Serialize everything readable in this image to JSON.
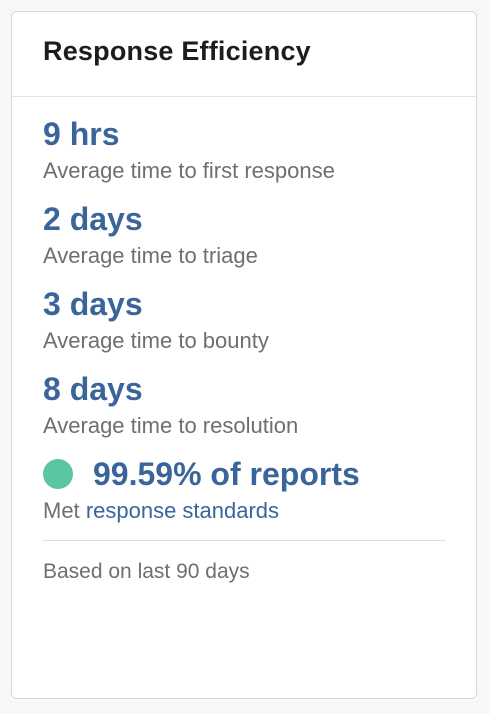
{
  "card": {
    "title": "Response Efficiency"
  },
  "metrics": [
    {
      "value": "9 hrs",
      "label": "Average time to first response"
    },
    {
      "value": "2 days",
      "label": "Average time to triage"
    },
    {
      "value": "3 days",
      "label": "Average time to bounty"
    },
    {
      "value": "8 days",
      "label": "Average time to resolution"
    }
  ],
  "standards": {
    "value": "99.59% of reports",
    "label_prefix": "Met",
    "link_text": "response standards",
    "status_color": "#5cc6a0"
  },
  "footer": {
    "note": "Based on last 90 days"
  },
  "colors": {
    "accent": "#3a659b",
    "muted_text": "#6f6f6f"
  }
}
